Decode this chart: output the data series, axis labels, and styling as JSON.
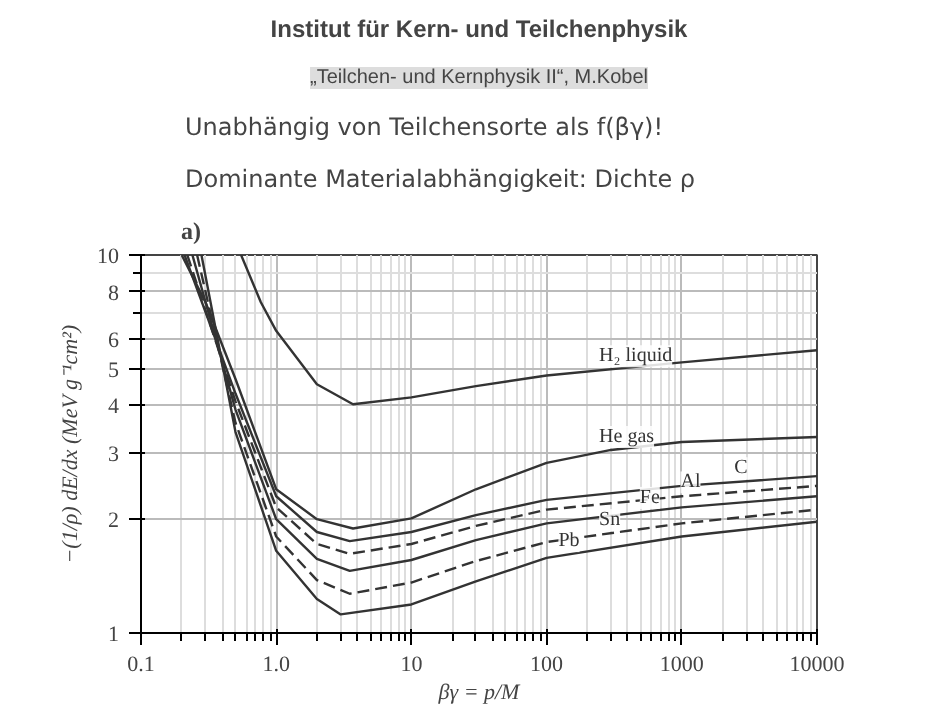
{
  "chart_data": {
    "type": "line",
    "title": "Institut für Kern- und Teilchenphysik",
    "subtitle": "„Teilchen- und Kernphysik II“, M.Kobel",
    "annotations": [
      "Unabhängig von Teilchensorte als f(βγ)!",
      "Dominante Materialabhängigkeit: Dichte ρ",
      "a)"
    ],
    "xlabel": "βγ = p/M",
    "ylabel": "−(1/ρ) dE/dx (MeV g⁻¹cm²)",
    "log": "xy",
    "grid": true,
    "xlim": [
      0.1,
      10000
    ],
    "ylim": [
      1,
      10
    ],
    "xticks": [
      0.1,
      {
        "value": 1,
        "label": "1.0"
      },
      10,
      100,
      1000,
      10000
    ],
    "yticks": [
      1,
      2,
      3,
      4,
      5,
      6,
      8,
      10
    ],
    "series": [
      {
        "name": "H₂ liquid",
        "color": "#333333",
        "line_style": "solid",
        "x": [
          0.55,
          0.77,
          1,
          2,
          3.7,
          10,
          30,
          100,
          1000,
          10000
        ],
        "values": [
          10,
          7.5,
          6.3,
          4.55,
          4.03,
          4.2,
          4.5,
          4.8,
          5.2,
          5.6
        ]
      },
      {
        "name": "He gas",
        "color": "#333333",
        "line_style": "solid",
        "x": [
          0.2,
          0.3,
          0.5,
          1,
          2,
          3.7,
          10,
          30,
          100,
          300,
          1000,
          10000
        ],
        "values": [
          10,
          7.5,
          4.7,
          2.4,
          2.0,
          1.89,
          2.01,
          2.4,
          2.82,
          3.05,
          3.2,
          3.3
        ]
      },
      {
        "name": "C",
        "color": "#333333",
        "line_style": "solid",
        "x": [
          0.21,
          0.5,
          1,
          2,
          3.5,
          10,
          30,
          100,
          1000,
          10000
        ],
        "values": [
          10,
          4.3,
          2.3,
          1.85,
          1.75,
          1.85,
          2.05,
          2.25,
          2.45,
          2.6
        ]
      },
      {
        "name": "Al",
        "color": "#333333",
        "line_style": "dashed",
        "x": [
          0.22,
          0.5,
          1,
          2,
          3.5,
          10,
          30,
          100,
          1000,
          10000
        ],
        "values": [
          10,
          4.1,
          2.15,
          1.72,
          1.62,
          1.72,
          1.92,
          2.12,
          2.3,
          2.45
        ]
      },
      {
        "name": "Fe",
        "color": "#333333",
        "line_style": "solid",
        "x": [
          0.24,
          0.5,
          1,
          2,
          3.5,
          10,
          30,
          100,
          1000,
          10000
        ],
        "values": [
          10,
          3.9,
          2.0,
          1.57,
          1.46,
          1.56,
          1.76,
          1.95,
          2.15,
          2.3
        ]
      },
      {
        "name": "Sn",
        "color": "#333333",
        "line_style": "dashed",
        "x": [
          0.26,
          0.5,
          1,
          2,
          3.5,
          10,
          30,
          100,
          1000,
          10000
        ],
        "values": [
          10,
          3.6,
          1.8,
          1.38,
          1.27,
          1.36,
          1.55,
          1.74,
          1.95,
          2.12
        ]
      },
      {
        "name": "Pb",
        "color": "#333333",
        "line_style": "solid",
        "x": [
          0.28,
          0.5,
          1,
          2,
          3,
          10,
          30,
          100,
          1000,
          10000
        ],
        "values": [
          10,
          3.4,
          1.65,
          1.23,
          1.12,
          1.19,
          1.37,
          1.58,
          1.8,
          1.97
        ]
      }
    ]
  }
}
